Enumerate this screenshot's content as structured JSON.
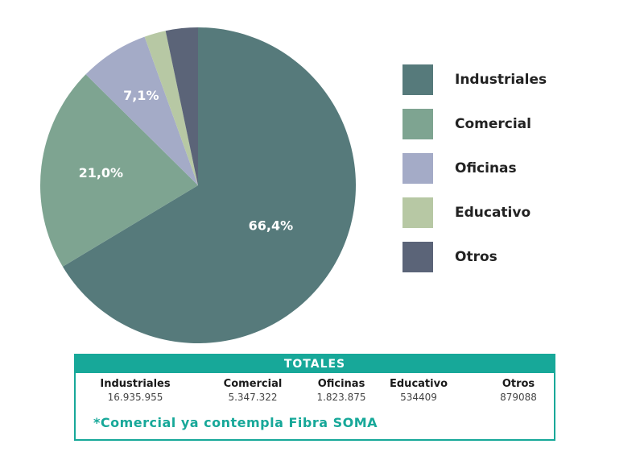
{
  "chart_data": {
    "type": "pie",
    "slices": [
      {
        "label": "Industriales",
        "value": 66.4,
        "value_label": "66,4%",
        "color": "#567a7b"
      },
      {
        "label": "Comercial",
        "value": 21.0,
        "value_label": "21,0%",
        "color": "#7ea491"
      },
      {
        "label": "Oficinas",
        "value": 7.1,
        "value_label": "7,1%",
        "color": "#a4abc7"
      },
      {
        "label": "Educativo",
        "value": 2.2,
        "value_label": "",
        "color": "#b7c8a4"
      },
      {
        "label": "Otros",
        "value": 3.3,
        "value_label": "",
        "color": "#5b6478"
      }
    ],
    "legend_position": "right"
  },
  "legend": [
    {
      "label": "Industriales",
      "color": "#567a7b"
    },
    {
      "label": "Comercial",
      "color": "#7ea491"
    },
    {
      "label": "Oficinas",
      "color": "#a4abc7"
    },
    {
      "label": "Educativo",
      "color": "#b7c8a4"
    },
    {
      "label": "Otros",
      "color": "#5b6478"
    }
  ],
  "totals": {
    "title": "TOTALES",
    "columns": [
      {
        "name": "Industriales",
        "value": "16.935.955"
      },
      {
        "name": "Comercial",
        "value": "5.347.322"
      },
      {
        "name": "Oficinas",
        "value": "1.823.875"
      },
      {
        "name": "Educativo",
        "value": "534409"
      },
      {
        "name": "Otros",
        "value": "879088"
      }
    ],
    "note": "*Comercial ya contempla Fibra SOMA"
  },
  "colors": {
    "accent": "#17a899"
  }
}
